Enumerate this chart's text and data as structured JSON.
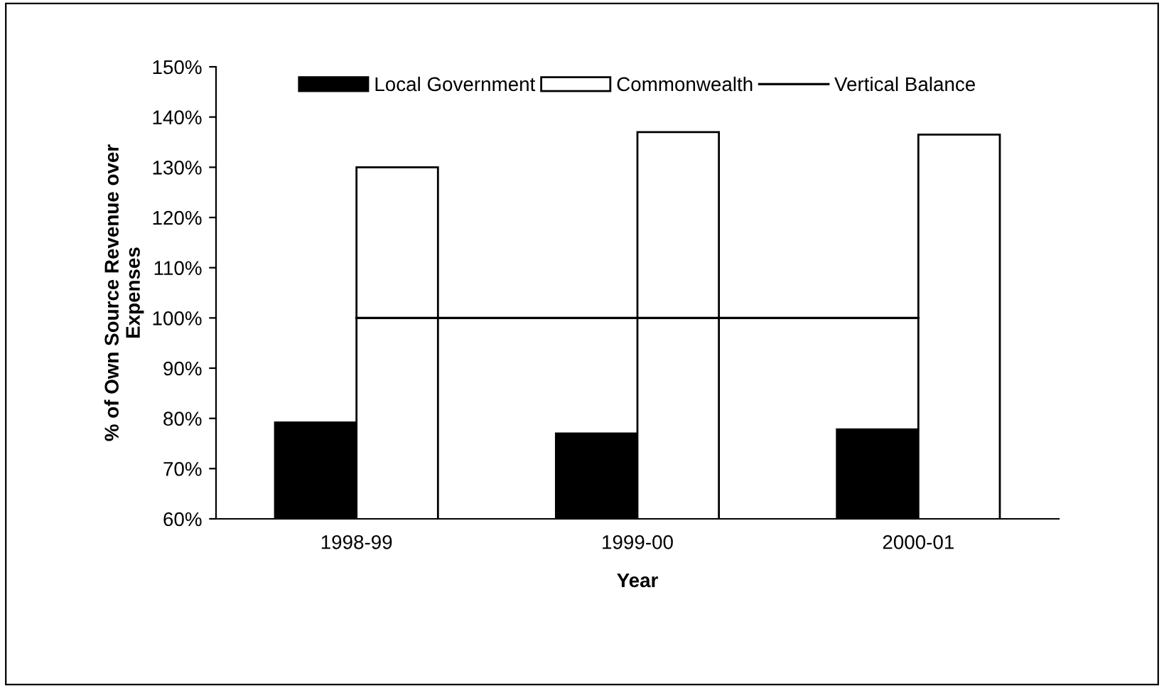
{
  "chart_data": {
    "type": "bar",
    "xlabel": "Year",
    "ylabel": "% of Own Source Revenue over\nExpenses",
    "categories": [
      "1998-99",
      "1999-00",
      "2000-01"
    ],
    "series": [
      {
        "name": "Local Government",
        "color": "#000000",
        "values": [
          79.2,
          77.0,
          77.8
        ]
      },
      {
        "name": "Commonwealth",
        "color": "#ffffff",
        "values": [
          130.0,
          137.0,
          136.5
        ]
      },
      {
        "name": "Vertical Balance",
        "type": "line",
        "color": "#000000",
        "values": [
          100,
          100,
          100
        ]
      }
    ],
    "ylim": [
      60,
      150
    ],
    "yticks": [
      {
        "value": 60,
        "label": "60%"
      },
      {
        "value": 70,
        "label": "70%"
      },
      {
        "value": 80,
        "label": "80%"
      },
      {
        "value": 90,
        "label": "90%"
      },
      {
        "value": 100,
        "label": "100%"
      },
      {
        "value": 110,
        "label": "110%"
      },
      {
        "value": 120,
        "label": "120%"
      },
      {
        "value": 130,
        "label": "130%"
      },
      {
        "value": 140,
        "label": "140%"
      },
      {
        "value": 150,
        "label": "150%"
      }
    ],
    "grid": false,
    "legend": "top"
  }
}
